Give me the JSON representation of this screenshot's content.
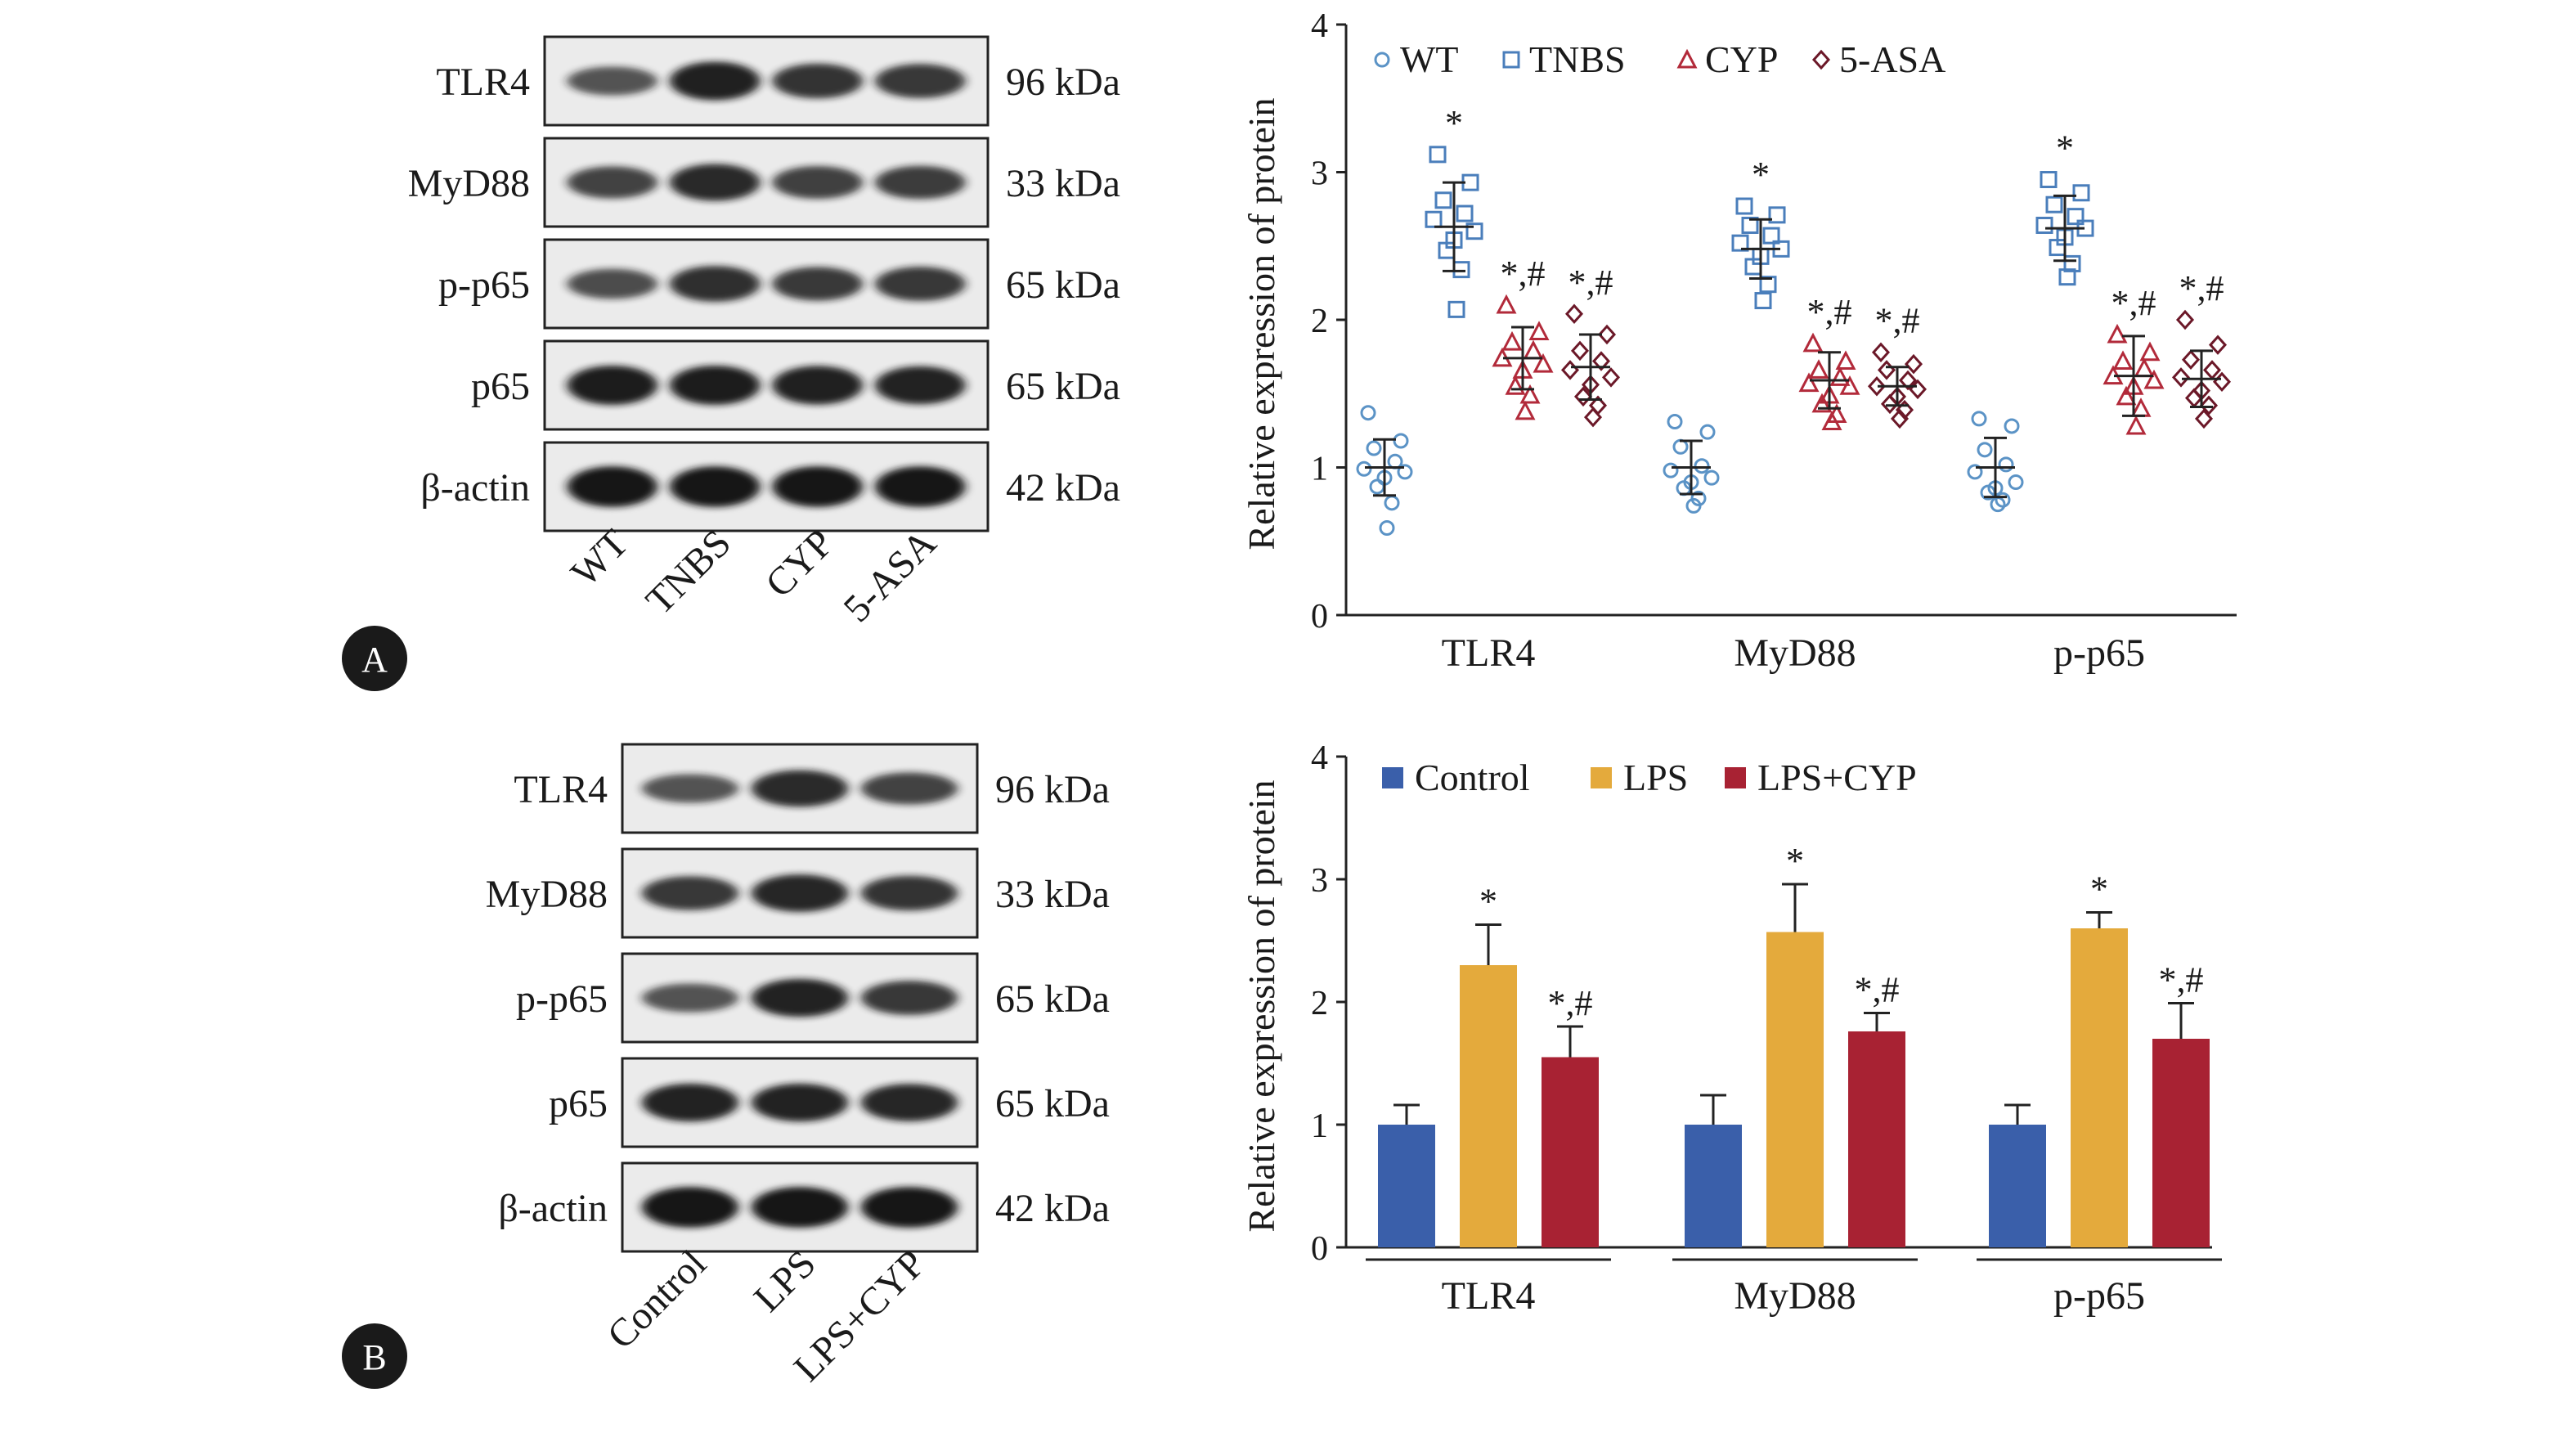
{
  "panels": [
    {
      "letter": "A",
      "blot": {
        "proteins": [
          "TLR4",
          "MyD88",
          "p-p65",
          "p65",
          "β-actin"
        ],
        "sizes": [
          "96 kDa",
          "33 kDa",
          "65 kDa",
          "65 kDa",
          "42 kDa"
        ],
        "lanes": [
          "WT",
          "TNBS",
          "CYP",
          "5-ASA"
        ],
        "intensity": [
          [
            0.55,
            0.92,
            0.78,
            0.76
          ],
          [
            0.68,
            0.86,
            0.7,
            0.72
          ],
          [
            0.6,
            0.82,
            0.74,
            0.76
          ],
          [
            0.95,
            0.95,
            0.93,
            0.9
          ],
          [
            1.0,
            1.0,
            1.0,
            1.0
          ]
        ]
      }
    },
    {
      "letter": "B",
      "blot": {
        "proteins": [
          "TLR4",
          "MyD88",
          "p-p65",
          "p65",
          "β-actin"
        ],
        "sizes": [
          "96 kDa",
          "33 kDa",
          "65 kDa",
          "65 kDa",
          "42 kDa"
        ],
        "lanes": [
          "Control",
          "LPS",
          "LPS+CYP"
        ],
        "intensity": [
          [
            0.55,
            0.85,
            0.68
          ],
          [
            0.75,
            0.88,
            0.78
          ],
          [
            0.55,
            0.9,
            0.76
          ],
          [
            0.9,
            0.9,
            0.88
          ],
          [
            1.0,
            1.0,
            1.0
          ]
        ]
      }
    }
  ],
  "chart_data": [
    {
      "type": "scatter",
      "title": "",
      "xlabel": "",
      "ylabel": "Relative expression of protein",
      "ylim": [
        0,
        4
      ],
      "yticks": [
        0,
        1,
        2,
        3,
        4
      ],
      "categories": [
        "TLR4",
        "MyD88",
        "p-p65"
      ],
      "legend_position": "top",
      "series": [
        {
          "name": "WT",
          "marker": "circle",
          "color": "#5b93c6",
          "points": [
            [
              1.37,
              1.18,
              1.13,
              1.04,
              0.99,
              0.97,
              0.93,
              0.87,
              0.76,
              0.59
            ],
            [
              1.31,
              1.24,
              1.14,
              1.01,
              0.98,
              0.93,
              0.9,
              0.86,
              0.79,
              0.74
            ],
            [
              1.33,
              1.28,
              1.12,
              1.02,
              0.97,
              0.9,
              0.86,
              0.83,
              0.78,
              0.75
            ]
          ],
          "mean": [
            1.0,
            1.0,
            1.0
          ],
          "sd": [
            0.19,
            0.18,
            0.2
          ],
          "annotation": [
            "",
            "",
            ""
          ]
        },
        {
          "name": "TNBS",
          "marker": "square",
          "color": "#4a7ebb",
          "points": [
            [
              3.12,
              2.93,
              2.81,
              2.72,
              2.68,
              2.6,
              2.54,
              2.47,
              2.34,
              2.07
            ],
            [
              2.77,
              2.71,
              2.64,
              2.57,
              2.52,
              2.48,
              2.43,
              2.36,
              2.24,
              2.13
            ],
            [
              2.95,
              2.86,
              2.78,
              2.7,
              2.64,
              2.62,
              2.56,
              2.49,
              2.38,
              2.29
            ]
          ],
          "mean": [
            2.63,
            2.48,
            2.62
          ],
          "sd": [
            0.3,
            0.2,
            0.22
          ],
          "annotation": [
            "*",
            "*",
            "*"
          ]
        },
        {
          "name": "CYP",
          "marker": "triangle",
          "color": "#b22a3a",
          "points": [
            [
              2.1,
              1.92,
              1.85,
              1.79,
              1.74,
              1.7,
              1.66,
              1.55,
              1.49,
              1.38
            ],
            [
              1.84,
              1.72,
              1.66,
              1.61,
              1.57,
              1.55,
              1.49,
              1.43,
              1.36,
              1.31
            ],
            [
              1.9,
              1.78,
              1.72,
              1.67,
              1.62,
              1.59,
              1.55,
              1.48,
              1.4,
              1.28
            ]
          ],
          "mean": [
            1.74,
            1.59,
            1.62
          ],
          "sd": [
            0.21,
            0.19,
            0.27
          ],
          "annotation": [
            "*,#",
            "*,#",
            "*,#"
          ]
        },
        {
          "name": "5-ASA",
          "marker": "diamond",
          "color": "#6b1828",
          "points": [
            [
              2.04,
              1.9,
              1.79,
              1.72,
              1.66,
              1.61,
              1.56,
              1.48,
              1.42,
              1.34
            ],
            [
              1.78,
              1.7,
              1.66,
              1.59,
              1.55,
              1.53,
              1.48,
              1.43,
              1.39,
              1.33
            ],
            [
              2.0,
              1.83,
              1.73,
              1.66,
              1.61,
              1.58,
              1.52,
              1.47,
              1.42,
              1.33
            ]
          ],
          "mean": [
            1.68,
            1.55,
            1.6
          ],
          "sd": [
            0.22,
            0.13,
            0.19
          ],
          "annotation": [
            "*,#",
            "*,#",
            "*,#"
          ]
        }
      ]
    },
    {
      "type": "bar",
      "title": "",
      "xlabel": "",
      "ylabel": "Relative expression of protein",
      "ylim": [
        0,
        4
      ],
      "yticks": [
        0,
        1,
        2,
        3,
        4
      ],
      "categories": [
        "TLR4",
        "MyD88",
        "p-p65"
      ],
      "legend_position": "top",
      "series": [
        {
          "name": "Control",
          "color": "#3a5faa",
          "values": [
            1.0,
            1.0,
            1.0
          ],
          "error": [
            0.16,
            0.24,
            0.16
          ],
          "annotation": [
            "",
            "",
            ""
          ]
        },
        {
          "name": "LPS",
          "color": "#e4aa3c",
          "values": [
            2.3,
            2.57,
            2.6
          ],
          "error": [
            0.33,
            0.39,
            0.13
          ],
          "annotation": [
            "*",
            "*",
            "*"
          ]
        },
        {
          "name": "LPS+CYP",
          "color": "#a82233",
          "values": [
            1.55,
            1.76,
            1.7
          ],
          "error": [
            0.25,
            0.15,
            0.29
          ],
          "annotation": [
            "*,#",
            "*,#",
            "*,#"
          ]
        }
      ]
    }
  ]
}
